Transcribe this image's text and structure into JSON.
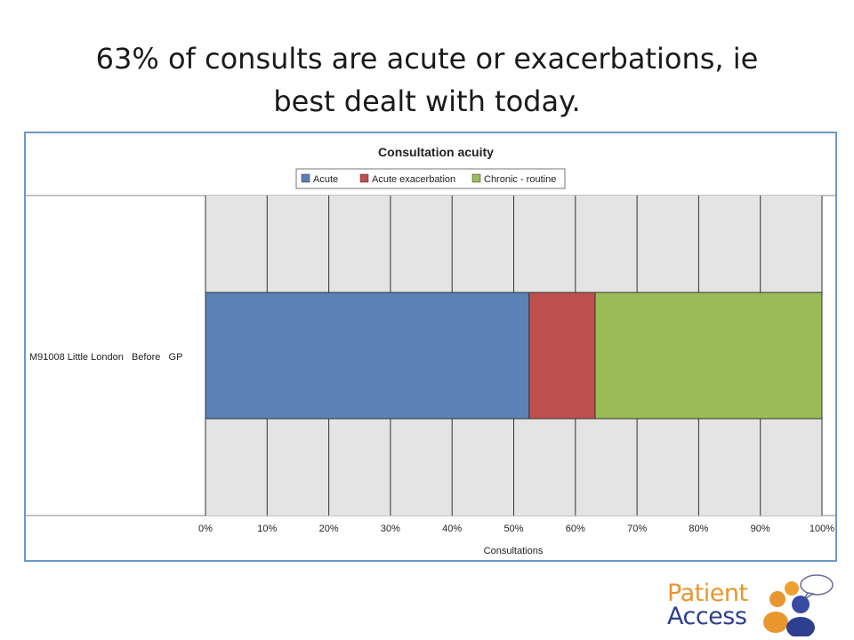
{
  "slide": {
    "title_line1": "63% of consults are acute or exacerbations, ie",
    "title_line2": "best dealt with today."
  },
  "chart_data": {
    "type": "bar",
    "orientation": "horizontal",
    "stacked": true,
    "title": "Consultation acuity",
    "categories": [
      "M91008 Little London   Before   GP"
    ],
    "series": [
      {
        "name": "Acute",
        "values": [
          52.5
        ],
        "color": "#5b81b5"
      },
      {
        "name": "Acute exacerbation",
        "values": [
          10.7
        ],
        "color": "#c0504d"
      },
      {
        "name": "Chronic - routine",
        "values": [
          36.8
        ],
        "color": "#9bbb59"
      }
    ],
    "xlabel": "Consultations",
    "ylabel": "",
    "xlim": [
      0,
      100
    ],
    "x_ticks": [
      "0%",
      "10%",
      "20%",
      "30%",
      "40%",
      "50%",
      "60%",
      "70%",
      "80%",
      "90%",
      "100%"
    ],
    "grid": true,
    "legend_position": "top"
  },
  "logo": {
    "line1": "Patient",
    "line2": "Access"
  }
}
